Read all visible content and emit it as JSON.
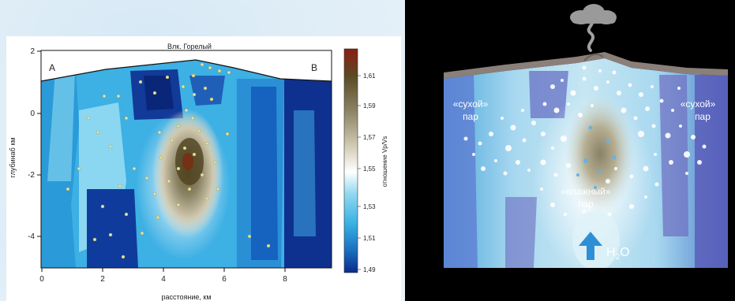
{
  "left_figure": {
    "volcano_label": "Влк. Горелый",
    "label_a": "A",
    "label_b": "B",
    "y_axis_label": "глубинаб км",
    "x_axis_label": "расстояние, км",
    "x_ticks": [
      "0",
      "2",
      "4",
      "6",
      "8"
    ],
    "y_ticks": [
      "2",
      "0",
      "-2",
      "-4"
    ],
    "colorbar_label": "отношение Vp/Vs",
    "colorbar_ticks": [
      "1,61",
      "1,59",
      "1,57",
      "1,55",
      "1,53",
      "1,51",
      "1,49"
    ],
    "colorbar_colors": [
      "#8b1e10",
      "#5a4a24",
      "#8c8466",
      "#d8d2bd",
      "#ffffff",
      "#8fd8ef",
      "#38b2e3",
      "#1a6fc0",
      "#0b2a8a"
    ]
  },
  "right_figure": {
    "label_dry_left": "«сухой»\nпар",
    "label_dry_left_1": "«сухой»",
    "label_dry_left_2": "пар",
    "label_dry_right_1": "«сухой»",
    "label_dry_right_2": "пар",
    "label_wet_1": "«влажный»",
    "label_wet_2": "пар",
    "water_label_main": "H",
    "water_label_sub": "2",
    "water_label_end": "O",
    "arrow_color": "#2f8fd6",
    "cloud_color": "#9a9a9a"
  }
}
